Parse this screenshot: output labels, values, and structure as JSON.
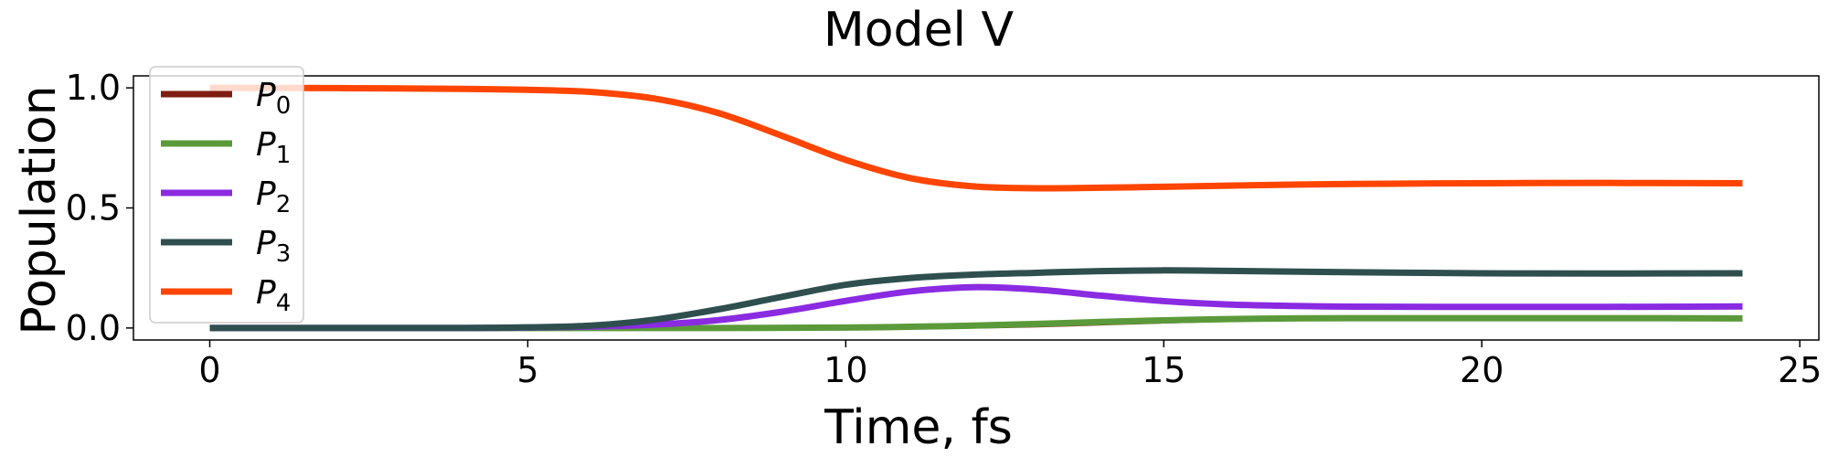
{
  "chart_data": {
    "type": "line",
    "title": "Model V",
    "xlabel": "Time, fs",
    "ylabel": "Population",
    "xlim": [
      -1.2,
      25.3
    ],
    "ylim": [
      -0.05,
      1.05
    ],
    "xticks": [
      0,
      5,
      10,
      15,
      20,
      25
    ],
    "xtick_labels": [
      "0",
      "5",
      "10",
      "15",
      "20",
      "25"
    ],
    "yticks": [
      0.0,
      0.5,
      1.0
    ],
    "ytick_labels": [
      "0.0",
      "0.5",
      "1.0"
    ],
    "grid": false,
    "legend_position": "upper-left",
    "series": [
      {
        "name": "P0",
        "legend_base": "P",
        "legend_sub": "0",
        "color": "#7f1d12",
        "x": [
          0,
          2,
          4,
          6,
          8,
          10,
          11,
          12,
          13,
          14,
          15,
          16,
          17,
          18,
          20,
          22,
          24.1
        ],
        "y": [
          0.0,
          0.0,
          0.0,
          0.0,
          0.0,
          0.001,
          0.002,
          0.005,
          0.01,
          0.018,
          0.026,
          0.033,
          0.037,
          0.039,
          0.04,
          0.04,
          0.04
        ]
      },
      {
        "name": "P1",
        "legend_base": "P",
        "legend_sub": "1",
        "color": "#5b9a3a",
        "x": [
          0,
          2,
          4,
          6,
          8,
          10,
          11,
          12,
          13,
          14,
          15,
          16,
          17,
          18,
          20,
          22,
          24.1
        ],
        "y": [
          0.0,
          0.0,
          0.0,
          0.0,
          0.0,
          0.002,
          0.005,
          0.01,
          0.017,
          0.025,
          0.032,
          0.037,
          0.04,
          0.041,
          0.041,
          0.041,
          0.04
        ]
      },
      {
        "name": "P2",
        "legend_base": "P",
        "legend_sub": "2",
        "color": "#8a2be2",
        "x": [
          0,
          2,
          4,
          5,
          6,
          7,
          8,
          9,
          10,
          11,
          12,
          13,
          14,
          15,
          16,
          17,
          18,
          20,
          22,
          24.1
        ],
        "y": [
          0.0,
          0.0,
          0.0,
          0.002,
          0.006,
          0.014,
          0.033,
          0.068,
          0.113,
          0.152,
          0.17,
          0.16,
          0.135,
          0.112,
          0.098,
          0.092,
          0.089,
          0.088,
          0.088,
          0.09
        ]
      },
      {
        "name": "P3",
        "legend_base": "P",
        "legend_sub": "3",
        "color": "#2f4f4f",
        "x": [
          0,
          2,
          4,
          5,
          6,
          7,
          8,
          9,
          10,
          11,
          12,
          13,
          14,
          15,
          16,
          17,
          18,
          20,
          22,
          24.1
        ],
        "y": [
          0.0,
          0.0,
          0.0,
          0.003,
          0.01,
          0.035,
          0.078,
          0.13,
          0.18,
          0.208,
          0.222,
          0.23,
          0.237,
          0.24,
          0.238,
          0.235,
          0.232,
          0.228,
          0.227,
          0.228
        ]
      },
      {
        "name": "P4",
        "legend_base": "P",
        "legend_sub": "4",
        "color": "#ff4500",
        "x": [
          0,
          2,
          4,
          5,
          6,
          7,
          8,
          9,
          10,
          11,
          12,
          13,
          14,
          15,
          16,
          17,
          18,
          20,
          22,
          24.1
        ],
        "y": [
          1.0,
          0.999,
          0.996,
          0.992,
          0.983,
          0.955,
          0.895,
          0.8,
          0.7,
          0.625,
          0.59,
          0.582,
          0.584,
          0.588,
          0.593,
          0.597,
          0.6,
          0.603,
          0.604,
          0.603
        ]
      }
    ]
  }
}
